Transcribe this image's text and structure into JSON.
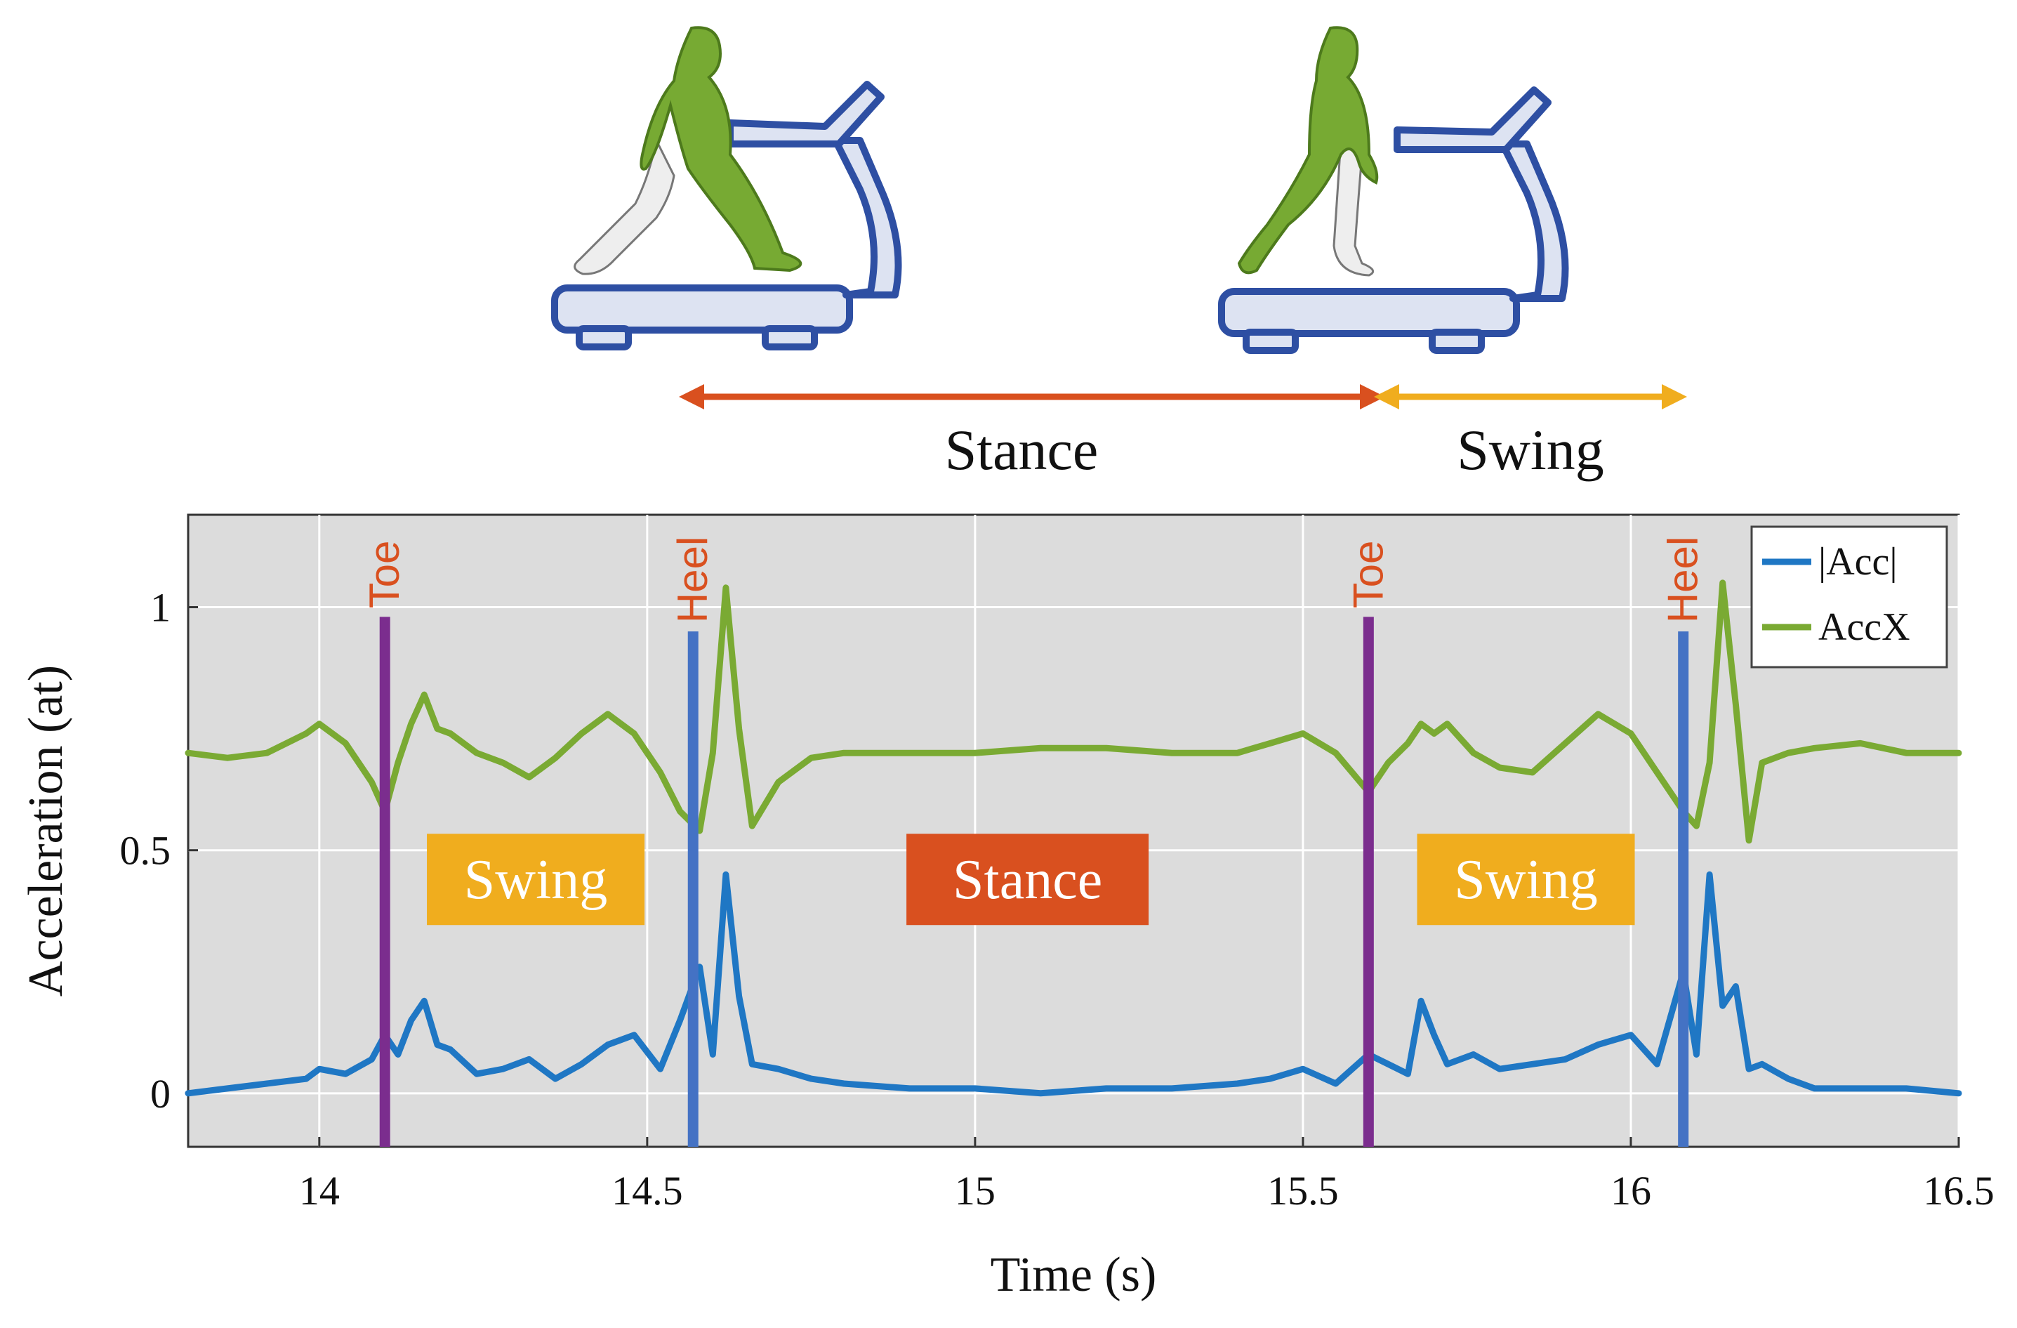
{
  "colors": {
    "acc_mag": "#1f77c4",
    "acc_x": "#7aaa33",
    "toe_line": "#7b2d8e",
    "heel_line": "#4472c4",
    "event_label": "#d9501f",
    "stance": "#d9501f",
    "swing": "#f0ad1e",
    "plot_bg": "#dcdcdc",
    "treadmill": "#2e4fa3",
    "treadmill_fill": "#dde3f2",
    "body_front": "#77aa33",
    "body_back": "#eeeeee"
  },
  "illustration": {
    "stance_label": "Stance",
    "swing_label": "Swing"
  },
  "chart_data": {
    "type": "line",
    "xlabel": "Time (s)",
    "ylabel": "Acceleration (at)",
    "xlim": [
      13.8,
      16.5
    ],
    "ylim": [
      -0.11,
      1.19
    ],
    "xticks": [
      14,
      14.5,
      15,
      15.5,
      16,
      16.5
    ],
    "xtick_labels": [
      "14",
      "14.5",
      "15",
      "15.5",
      "16",
      "16.5"
    ],
    "yticks": [
      0,
      0.5,
      1
    ],
    "ytick_labels": [
      "0",
      "0.5",
      "1"
    ],
    "grid": true,
    "legend_position": "top-right",
    "series": [
      {
        "name": "|Acc|",
        "color_key": "acc_mag",
        "x": [
          13.8,
          13.86,
          13.92,
          13.98,
          14.0,
          14.04,
          14.08,
          14.1,
          14.12,
          14.14,
          14.16,
          14.18,
          14.2,
          14.24,
          14.28,
          14.32,
          14.36,
          14.4,
          14.44,
          14.48,
          14.52,
          14.55,
          14.58,
          14.6,
          14.62,
          14.64,
          14.66,
          14.7,
          14.75,
          14.8,
          14.9,
          15.0,
          15.1,
          15.2,
          15.3,
          15.4,
          15.45,
          15.5,
          15.55,
          15.6,
          15.63,
          15.66,
          15.68,
          15.7,
          15.72,
          15.76,
          15.8,
          15.85,
          15.9,
          15.95,
          16.0,
          16.04,
          16.08,
          16.1,
          16.12,
          16.14,
          16.16,
          16.18,
          16.2,
          16.24,
          16.28,
          16.35,
          16.42,
          16.5
        ],
        "y": [
          0.0,
          0.01,
          0.02,
          0.03,
          0.05,
          0.04,
          0.07,
          0.12,
          0.08,
          0.15,
          0.19,
          0.1,
          0.09,
          0.04,
          0.05,
          0.07,
          0.03,
          0.06,
          0.1,
          0.12,
          0.05,
          0.15,
          0.26,
          0.08,
          0.45,
          0.2,
          0.06,
          0.05,
          0.03,
          0.02,
          0.01,
          0.01,
          0.0,
          0.01,
          0.01,
          0.02,
          0.03,
          0.05,
          0.02,
          0.08,
          0.06,
          0.04,
          0.19,
          0.12,
          0.06,
          0.08,
          0.05,
          0.06,
          0.07,
          0.1,
          0.12,
          0.06,
          0.25,
          0.08,
          0.45,
          0.18,
          0.22,
          0.05,
          0.06,
          0.03,
          0.01,
          0.01,
          0.01,
          0.0
        ]
      },
      {
        "name": "AccX",
        "color_key": "acc_x",
        "x": [
          13.8,
          13.86,
          13.92,
          13.98,
          14.0,
          14.04,
          14.08,
          14.1,
          14.12,
          14.14,
          14.16,
          14.18,
          14.2,
          14.24,
          14.28,
          14.32,
          14.36,
          14.4,
          14.44,
          14.48,
          14.52,
          14.55,
          14.58,
          14.6,
          14.62,
          14.64,
          14.66,
          14.7,
          14.75,
          14.8,
          14.9,
          15.0,
          15.1,
          15.2,
          15.3,
          15.4,
          15.45,
          15.5,
          15.55,
          15.6,
          15.63,
          15.66,
          15.68,
          15.7,
          15.72,
          15.76,
          15.8,
          15.85,
          15.9,
          15.95,
          16.0,
          16.04,
          16.08,
          16.1,
          16.12,
          16.14,
          16.16,
          16.18,
          16.2,
          16.24,
          16.28,
          16.35,
          16.42,
          16.5
        ],
        "y": [
          0.7,
          0.69,
          0.7,
          0.74,
          0.76,
          0.72,
          0.64,
          0.58,
          0.68,
          0.76,
          0.82,
          0.75,
          0.74,
          0.7,
          0.68,
          0.65,
          0.69,
          0.74,
          0.78,
          0.74,
          0.66,
          0.58,
          0.54,
          0.7,
          1.04,
          0.75,
          0.55,
          0.64,
          0.69,
          0.7,
          0.7,
          0.7,
          0.71,
          0.71,
          0.7,
          0.7,
          0.72,
          0.74,
          0.7,
          0.62,
          0.68,
          0.72,
          0.76,
          0.74,
          0.76,
          0.7,
          0.67,
          0.66,
          0.72,
          0.78,
          0.74,
          0.66,
          0.58,
          0.55,
          0.68,
          1.05,
          0.8,
          0.52,
          0.68,
          0.7,
          0.71,
          0.72,
          0.7,
          0.7
        ]
      }
    ],
    "events": [
      {
        "label": "Toe",
        "x": 14.1,
        "y_top": 0.98,
        "type": "toe"
      },
      {
        "label": "Heel",
        "x": 14.57,
        "y_top": 0.95,
        "type": "heel"
      },
      {
        "label": "Toe",
        "x": 15.6,
        "y_top": 0.98,
        "type": "toe"
      },
      {
        "label": "Heel",
        "x": 16.08,
        "y_top": 0.95,
        "type": "heel"
      }
    ],
    "phase_labels": [
      {
        "label": "Swing",
        "x": 14.33,
        "y": 0.44,
        "color_key": "swing"
      },
      {
        "label": "Stance",
        "x": 15.08,
        "y": 0.44,
        "color_key": "stance"
      },
      {
        "label": "Swing",
        "x": 15.84,
        "y": 0.44,
        "color_key": "swing"
      }
    ]
  }
}
